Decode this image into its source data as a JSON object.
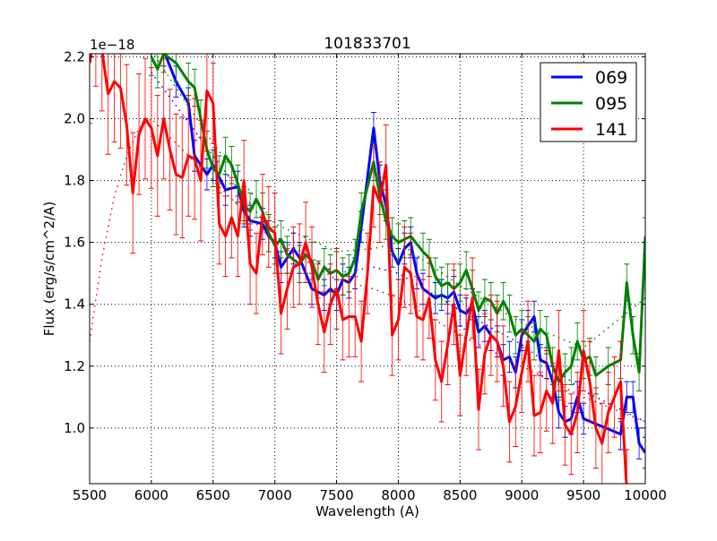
{
  "chart_data": {
    "type": "line",
    "title": "101833701",
    "xlabel": "Wavelength (A)",
    "ylabel": "Flux (erg/s/cm^2/A)",
    "y_offset_label": "1e−18",
    "xlim": [
      5500,
      10000
    ],
    "ylim": [
      0.82,
      2.21
    ],
    "xticks": [
      5500,
      6000,
      6500,
      7000,
      7500,
      8000,
      8500,
      9000,
      9500,
      10000
    ],
    "xtick_labels": [
      "5500",
      "6000",
      "6500",
      "7000",
      "7500",
      "8000",
      "8500",
      "9000",
      "9500",
      "10000"
    ],
    "yticks": [
      1.0,
      1.2,
      1.4,
      1.6,
      1.8,
      2.0,
      2.2
    ],
    "ytick_labels": [
      "1.0",
      "1.2",
      "1.4",
      "1.6",
      "1.8",
      "2.0",
      "2.2"
    ],
    "grid": true,
    "legend_position": "top-right",
    "series": [
      {
        "name": "069",
        "color": "#0000ff",
        "err": 0.05,
        "x": [
          6000,
          6100,
          6200,
          6300,
          6350,
          6450,
          6500,
          6600,
          6700,
          6750,
          6800,
          6900,
          6950,
          7000,
          7050,
          7100,
          7150,
          7200,
          7300,
          7400,
          7450,
          7500,
          7550,
          7600,
          7650,
          7700,
          7800,
          7850,
          7900,
          7950,
          8000,
          8050,
          8100,
          8150,
          8200,
          8300,
          8350,
          8400,
          8450,
          8500,
          8550,
          8600,
          8650,
          8700,
          8750,
          8800,
          8850,
          8900,
          8950,
          9000,
          9050,
          9100,
          9150,
          9200,
          9250,
          9300,
          9350,
          9400,
          9450,
          9500,
          9800,
          9850,
          9900,
          9950,
          10000
        ],
        "y": [
          2.3,
          2.22,
          2.12,
          2.05,
          1.88,
          1.82,
          1.85,
          1.77,
          1.78,
          1.7,
          1.67,
          1.66,
          1.62,
          1.6,
          1.52,
          1.55,
          1.58,
          1.55,
          1.45,
          1.43,
          1.45,
          1.43,
          1.48,
          1.47,
          1.5,
          1.65,
          1.97,
          1.8,
          1.72,
          1.57,
          1.53,
          1.58,
          1.6,
          1.5,
          1.45,
          1.42,
          1.43,
          1.42,
          1.44,
          1.38,
          1.37,
          1.4,
          1.31,
          1.33,
          1.3,
          1.28,
          1.22,
          1.23,
          1.18,
          1.3,
          1.33,
          1.36,
          1.22,
          1.21,
          1.15,
          1.05,
          1.02,
          1.03,
          1.1,
          1.03,
          0.98,
          1.1,
          1.1,
          0.95,
          0.92
        ],
        "model_x": [
          6000,
          6500,
          7000,
          7500,
          7800,
          8000,
          8500,
          9000,
          9500,
          10000
        ],
        "model_y": [
          2.15,
          1.88,
          1.62,
          1.5,
          1.52,
          1.5,
          1.38,
          1.27,
          1.12,
          1.02
        ]
      },
      {
        "name": "095",
        "color": "#008000",
        "err": 0.06,
        "x": [
          6000,
          6050,
          6100,
          6200,
          6300,
          6350,
          6400,
          6450,
          6500,
          6550,
          6600,
          6650,
          6700,
          6750,
          6800,
          6850,
          6900,
          6950,
          7000,
          7050,
          7100,
          7200,
          7250,
          7300,
          7350,
          7400,
          7450,
          7500,
          7550,
          7600,
          7650,
          7700,
          7800,
          7850,
          7900,
          7950,
          8000,
          8050,
          8100,
          8200,
          8250,
          8300,
          8350,
          8400,
          8450,
          8500,
          8550,
          8600,
          8650,
          8700,
          8750,
          8800,
          8850,
          8900,
          8950,
          9000,
          9050,
          9100,
          9150,
          9200,
          9250,
          9300,
          9350,
          9400,
          9450,
          9500,
          9550,
          9600,
          9700,
          9800,
          9850,
          9900,
          9950,
          10000
        ],
        "y": [
          2.2,
          2.16,
          2.21,
          2.18,
          2.12,
          2.1,
          2.0,
          1.9,
          1.84,
          1.82,
          1.88,
          1.85,
          1.79,
          1.72,
          1.7,
          1.74,
          1.7,
          1.63,
          1.59,
          1.61,
          1.56,
          1.53,
          1.56,
          1.54,
          1.48,
          1.52,
          1.5,
          1.51,
          1.49,
          1.5,
          1.55,
          1.7,
          1.86,
          1.75,
          1.67,
          1.62,
          1.6,
          1.61,
          1.62,
          1.57,
          1.55,
          1.49,
          1.46,
          1.47,
          1.45,
          1.47,
          1.51,
          1.45,
          1.38,
          1.42,
          1.41,
          1.37,
          1.41,
          1.37,
          1.3,
          1.32,
          1.3,
          1.28,
          1.32,
          1.3,
          1.2,
          1.15,
          1.18,
          1.2,
          1.28,
          1.22,
          1.23,
          1.17,
          1.2,
          1.22,
          1.47,
          1.3,
          1.18,
          1.62
        ],
        "model_x": [
          6000,
          6500,
          7000,
          7500,
          7800,
          8000,
          8500,
          9000,
          9500,
          10000
        ],
        "model_y": [
          2.22,
          1.92,
          1.66,
          1.57,
          1.58,
          1.6,
          1.46,
          1.34,
          1.26,
          1.42
        ]
      },
      {
        "name": "141",
        "color": "#ff0000",
        "err": 0.13,
        "x": [
          5500,
          5550,
          5600,
          5650,
          5700,
          5750,
          5800,
          5850,
          5900,
          5950,
          6000,
          6050,
          6100,
          6150,
          6200,
          6250,
          6300,
          6350,
          6400,
          6450,
          6500,
          6550,
          6600,
          6650,
          6700,
          6750,
          6800,
          6850,
          6900,
          6950,
          7000,
          7050,
          7100,
          7150,
          7200,
          7250,
          7300,
          7350,
          7400,
          7450,
          7500,
          7550,
          7600,
          7650,
          7700,
          7750,
          7800,
          7850,
          7900,
          7950,
          8000,
          8050,
          8100,
          8150,
          8200,
          8250,
          8300,
          8350,
          8400,
          8450,
          8500,
          8550,
          8600,
          8650,
          8700,
          8750,
          8800,
          8850,
          8900,
          8950,
          9000,
          9050,
          9100,
          9150,
          9200,
          9250,
          9300,
          9350,
          9400,
          9450,
          9500,
          9550,
          9600,
          9650,
          9700,
          9750,
          9800,
          9850
        ],
        "y": [
          2.18,
          2.3,
          2.22,
          2.08,
          2.12,
          2.1,
          1.98,
          1.76,
          1.95,
          2.0,
          1.97,
          1.88,
          2.0,
          1.9,
          1.82,
          1.81,
          1.88,
          1.87,
          1.8,
          2.09,
          2.05,
          1.66,
          1.62,
          1.68,
          1.62,
          1.8,
          1.53,
          1.5,
          1.69,
          1.65,
          1.63,
          1.37,
          1.45,
          1.52,
          1.53,
          1.6,
          1.52,
          1.4,
          1.31,
          1.4,
          1.45,
          1.35,
          1.36,
          1.36,
          1.28,
          1.5,
          1.78,
          1.73,
          1.85,
          1.3,
          1.35,
          1.52,
          1.5,
          1.36,
          1.35,
          1.42,
          1.22,
          1.15,
          1.27,
          1.4,
          1.17,
          1.3,
          1.42,
          1.06,
          1.24,
          1.3,
          1.28,
          1.2,
          1.02,
          1.07,
          1.18,
          1.28,
          1.04,
          1.05,
          1.12,
          1.08,
          1.25,
          1.01,
          0.98,
          1.05,
          1.25,
          1.15,
          1.0,
          0.95,
          1.05,
          1.1,
          1.15,
          0.8
        ],
        "model_x": [
          5500,
          5600,
          5700,
          5800,
          5900,
          6000,
          6500,
          7000,
          7500,
          7800,
          8000,
          8500,
          9000,
          9500,
          10000
        ],
        "model_y": [
          1.28,
          1.55,
          1.75,
          1.88,
          1.97,
          2.0,
          1.8,
          1.6,
          1.48,
          1.45,
          1.42,
          1.3,
          1.2,
          1.1,
          1.02
        ]
      }
    ]
  }
}
